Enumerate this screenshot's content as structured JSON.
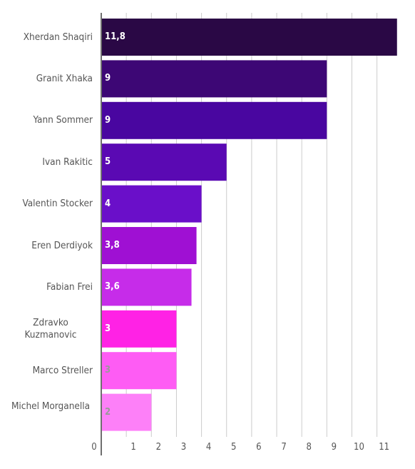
{
  "chart_data": {
    "type": "bar",
    "orientation": "horizontal",
    "categories": [
      "Xherdan Shaqiri",
      "Granit Xhaka",
      "Yann Sommer",
      "Ivan Rakitic",
      "Valentin Stocker",
      "Eren Derdiyok",
      "Fabian Frei",
      "Zdravko Kuzmanovic",
      "Marco Streller",
      "Michel Morganella"
    ],
    "values": [
      11.8,
      9,
      9,
      5,
      4,
      3.8,
      3.6,
      3,
      3,
      2
    ],
    "value_labels": [
      "11,8",
      "9",
      "9",
      "5",
      "4",
      "3,8",
      "3,6",
      "3",
      "3",
      "2"
    ],
    "colors": [
      "#2a0845",
      "#3d0775",
      "#4906a0",
      "#5a09b3",
      "#6a0fc9",
      "#9f10d3",
      "#c62ce9",
      "#ff22e5",
      "#fe5cf4",
      "#fd80f8"
    ],
    "value_label_colors": [
      "#ffffff",
      "#ffffff",
      "#ffffff",
      "#ffffff",
      "#ffffff",
      "#ffffff",
      "#ffffff",
      "#ffffff",
      "#9a9a9a",
      "#9a9a9a"
    ],
    "x_ticks": [
      "0",
      "1",
      "2",
      "3",
      "4",
      "5",
      "6",
      "7",
      "8",
      "9",
      "10",
      "11"
    ],
    "xlim": [
      0,
      12
    ],
    "grid": true,
    "title": "",
    "xlabel": "",
    "ylabel": ""
  }
}
